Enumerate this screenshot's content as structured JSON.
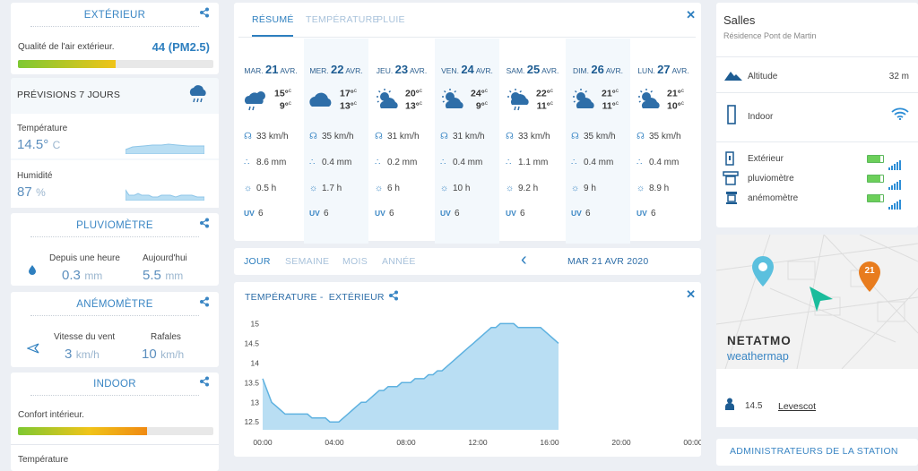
{
  "exterieur": {
    "title": "EXTÉRIEUR",
    "air_label": "Qualité de l'air extérieur.",
    "air_value": "44",
    "air_unit": "(PM2.5)",
    "air_level": 0.5
  },
  "forecast7": {
    "title": "PRÉVISIONS 7 JOURS",
    "temp_label": "Température",
    "temp_value": "14.5°",
    "temp_unit": "C",
    "hum_label": "Humidité",
    "hum_value": "87",
    "hum_unit": "%"
  },
  "pluvio": {
    "title": "PLUVIOMÈTRE",
    "hour_label": "Depuis une heure",
    "hour_value": "0.3",
    "hour_unit": "mm",
    "day_label": "Aujourd'hui",
    "day_value": "5.5",
    "day_unit": "mm"
  },
  "anemo": {
    "title": "ANÉMOMÈTRE",
    "wind_label": "Vitesse du vent",
    "wind_value": "3",
    "wind_unit": "km/h",
    "gust_label": "Rafales",
    "gust_value": "10",
    "gust_unit": "km/h"
  },
  "indoor": {
    "title": "INDOOR",
    "comfort_label": "Confort intérieur.",
    "comfort_level": 0.66,
    "temp_label": "Température"
  },
  "forecast": {
    "tabs": [
      "RÉSUMÉ",
      "TEMPÉRATURE",
      "PLUIE"
    ],
    "close": "✕",
    "days": [
      {
        "dow": "MAR.",
        "day": "21",
        "mon": "AVR.",
        "tmax": "15°",
        "tmin": "9°",
        "wind": "33 km/h",
        "rain": "8.6 mm",
        "sun": "0.5 h",
        "uv": "6",
        "icon": "cloud-rain-sun-icon"
      },
      {
        "dow": "MER.",
        "day": "22",
        "mon": "AVR.",
        "tmax": "17°",
        "tmin": "13°",
        "wind": "35 km/h",
        "rain": "0.4 mm",
        "sun": "1.7 h",
        "uv": "6",
        "icon": "cloud-icon"
      },
      {
        "dow": "JEU.",
        "day": "23",
        "mon": "AVR.",
        "tmax": "20°",
        "tmin": "13°",
        "wind": "31 km/h",
        "rain": "0.2 mm",
        "sun": "6 h",
        "uv": "6",
        "icon": "sun-cloud-icon"
      },
      {
        "dow": "VEN.",
        "day": "24",
        "mon": "AVR.",
        "tmax": "24°",
        "tmin": "9°",
        "wind": "31 km/h",
        "rain": "0.4 mm",
        "sun": "10 h",
        "uv": "6",
        "icon": "sun-cloud-icon"
      },
      {
        "dow": "SAM.",
        "day": "25",
        "mon": "AVR.",
        "tmax": "22°",
        "tmin": "11°",
        "wind": "33 km/h",
        "rain": "1.1 mm",
        "sun": "9.2 h",
        "uv": "6",
        "icon": "sun-rain-icon"
      },
      {
        "dow": "DIM.",
        "day": "26",
        "mon": "AVR.",
        "tmax": "21°",
        "tmin": "11°",
        "wind": "35 km/h",
        "rain": "0.4 mm",
        "sun": "9 h",
        "uv": "6",
        "icon": "sun-cloud-icon"
      },
      {
        "dow": "LUN.",
        "day": "27",
        "mon": "AVR.",
        "tmax": "21°",
        "tmin": "10°",
        "wind": "35 km/h",
        "rain": "0.4 mm",
        "sun": "8.9 h",
        "uv": "6",
        "icon": "sun-cloud-icon"
      }
    ],
    "uv_label": "UV",
    "temp_unit": "c"
  },
  "period": {
    "tabs": [
      "JOUR",
      "SEMAINE",
      "MOIS",
      "ANNÉE"
    ],
    "date": "MAR 21 AVR 2020",
    "prev": "‹"
  },
  "chartcard": {
    "title": "TEMPÉRATURE -  EXTÉRIEUR",
    "close": "✕"
  },
  "station": {
    "name": "Salles",
    "address": "Résidence Pont de Martin",
    "alt_label": "Altitude",
    "alt_value": "32 m",
    "indoor_label": "Indoor",
    "modules": [
      {
        "name": "Extérieur",
        "battery": 0.8
      },
      {
        "name": "pluviomètre",
        "battery": 0.8
      },
      {
        "name": "anémomètre",
        "battery": 0.8
      }
    ]
  },
  "map": {
    "brand": "NETATMO",
    "sub": "weathermap",
    "pin_value": "21",
    "temp": "14.5",
    "user": "Levescot"
  },
  "admins": {
    "title": "ADMINISTRATEURS DE LA STATION"
  },
  "colors": {
    "accent": "#2e7fbf",
    "chart_fill": "#b9def3",
    "chart_line": "#5fb2e0",
    "bar_green": "#7ec832",
    "bar_orange": "#f39c12"
  },
  "chart_data": {
    "type": "area",
    "title": "TEMPÉRATURE -  EXTÉRIEUR",
    "xlabel": "",
    "ylabel": "",
    "x": [
      "00:00",
      "00:15",
      "00:30",
      "00:45",
      "01:00",
      "01:15",
      "01:30",
      "01:45",
      "02:00",
      "02:15",
      "02:30",
      "02:45",
      "03:00",
      "03:15",
      "03:30",
      "03:45",
      "04:00",
      "04:15",
      "04:30",
      "04:45",
      "05:00",
      "05:15",
      "05:30",
      "05:45",
      "06:00",
      "06:15",
      "06:30",
      "06:45",
      "07:00",
      "07:15",
      "07:30",
      "07:45",
      "08:00",
      "08:15",
      "08:30",
      "08:45",
      "09:00",
      "09:15",
      "09:30",
      "09:45",
      "10:00",
      "10:15",
      "10:30",
      "10:45",
      "11:00",
      "11:15",
      "11:30",
      "11:45",
      "12:00",
      "12:15",
      "12:30",
      "12:45",
      "13:00",
      "13:15",
      "13:30",
      "13:45",
      "14:00",
      "14:15",
      "14:30",
      "14:45",
      "15:00",
      "15:15",
      "15:30",
      "15:45",
      "16:00",
      "16:15",
      "16:30"
    ],
    "values": [
      13.6,
      13.3,
      13.0,
      12.9,
      12.8,
      12.7,
      12.7,
      12.7,
      12.7,
      12.7,
      12.7,
      12.6,
      12.6,
      12.6,
      12.6,
      12.5,
      12.5,
      12.5,
      12.6,
      12.7,
      12.8,
      12.9,
      13.0,
      13.0,
      13.1,
      13.2,
      13.3,
      13.3,
      13.4,
      13.4,
      13.4,
      13.5,
      13.5,
      13.5,
      13.6,
      13.6,
      13.6,
      13.7,
      13.7,
      13.8,
      13.8,
      13.9,
      14.0,
      14.1,
      14.2,
      14.3,
      14.4,
      14.5,
      14.6,
      14.7,
      14.8,
      14.9,
      14.9,
      15.0,
      15.0,
      15.0,
      15.0,
      14.9,
      14.9,
      14.9,
      14.9,
      14.9,
      14.9,
      14.8,
      14.7,
      14.6,
      14.5
    ],
    "xticks": [
      "00:00",
      "04:00",
      "08:00",
      "12:00",
      "16:00",
      "20:00",
      "00:00"
    ],
    "yticks": [
      "12.5",
      "13",
      "13.5",
      "14",
      "14.5",
      "15"
    ],
    "ylim": [
      12.3,
      15.1
    ],
    "grid": false
  }
}
